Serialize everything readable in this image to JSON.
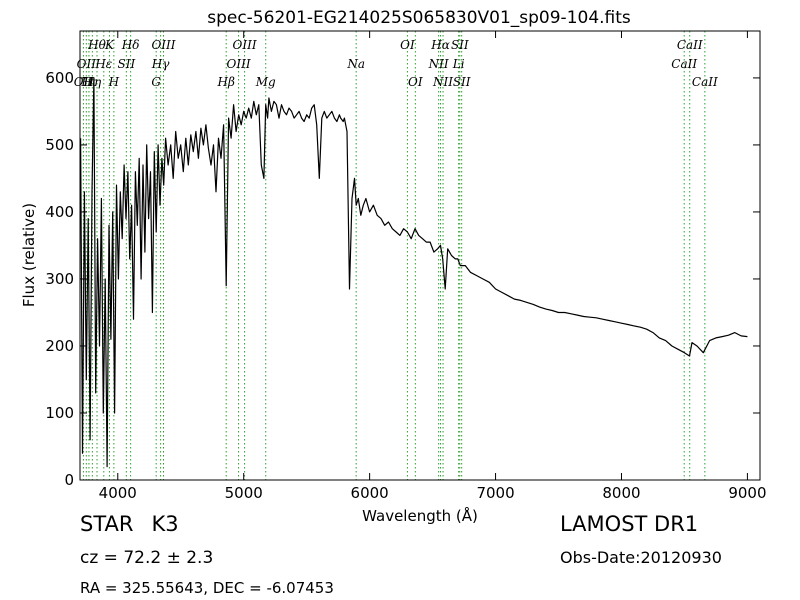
{
  "chart_data": {
    "type": "line",
    "title": "spec-56201-EG214025S065830V01_sp09-104.fits",
    "xlabel": "Wavelength (Å)",
    "ylabel": "Flux (relative)",
    "xlim": [
      3700,
      9100
    ],
    "ylim": [
      0,
      670
    ],
    "xticks": [
      4000,
      5000,
      6000,
      7000,
      8000,
      9000
    ],
    "yticks": [
      0,
      100,
      200,
      300,
      400,
      500,
      600
    ],
    "grid": false,
    "line_color": "#000000",
    "marker_color": "#2ca02c",
    "series": [
      {
        "x": [
          3705,
          3720,
          3735,
          3750,
          3765,
          3780,
          3795,
          3810,
          3825,
          3840,
          3855,
          3870,
          3885,
          3900,
          3915,
          3930,
          3945,
          3960,
          3975,
          3990,
          4005,
          4020,
          4035,
          4050,
          4065,
          4080,
          4095,
          4110,
          4125,
          4140,
          4155,
          4170,
          4185,
          4200,
          4215,
          4230,
          4245,
          4260,
          4275,
          4290,
          4305,
          4320,
          4335,
          4350,
          4365,
          4380,
          4400,
          4420,
          4440,
          4460,
          4480,
          4500,
          4520,
          4540,
          4560,
          4580,
          4600,
          4620,
          4640,
          4660,
          4680,
          4700,
          4720,
          4740,
          4760,
          4780,
          4800,
          4820,
          4840,
          4861,
          4880,
          4900,
          4920,
          4940,
          4960,
          4980,
          5000,
          5020,
          5040,
          5060,
          5080,
          5100,
          5120,
          5140,
          5160,
          5175,
          5190,
          5200,
          5220,
          5240,
          5260,
          5280,
          5300,
          5320,
          5340,
          5360,
          5380,
          5400,
          5420,
          5440,
          5460,
          5480,
          5500,
          5520,
          5540,
          5560,
          5580,
          5600,
          5620,
          5640,
          5660,
          5680,
          5700,
          5720,
          5740,
          5760,
          5770,
          5790,
          5800,
          5820,
          5840,
          5860,
          5880,
          5893,
          5910,
          5930,
          5950,
          5970,
          6000,
          6030,
          6060,
          6090,
          6120,
          6150,
          6180,
          6210,
          6240,
          6270,
          6300,
          6330,
          6360,
          6390,
          6420,
          6450,
          6480,
          6510,
          6540,
          6563,
          6580,
          6600,
          6620,
          6650,
          6680,
          6700,
          6720,
          6760,
          6800,
          6850,
          6900,
          6950,
          7000,
          7050,
          7100,
          7150,
          7200,
          7250,
          7300,
          7350,
          7400,
          7450,
          7500,
          7550,
          7600,
          7650,
          7700,
          7750,
          7800,
          7850,
          7900,
          7950,
          8000,
          8050,
          8100,
          8150,
          8200,
          8250,
          8300,
          8350,
          8400,
          8450,
          8500,
          8540,
          8560,
          8600,
          8650,
          8700,
          8750,
          8800,
          8850,
          8900,
          8950,
          9000
        ],
        "y": [
          510,
          40,
          430,
          150,
          390,
          60,
          430,
          600,
          130,
          360,
          200,
          420,
          100,
          300,
          20,
          380,
          210,
          400,
          100,
          440,
          300,
          430,
          360,
          470,
          390,
          460,
          330,
          410,
          240,
          460,
          380,
          480,
          300,
          470,
          340,
          500,
          390,
          460,
          250,
          490,
          370,
          500,
          410,
          480,
          440,
          510,
          470,
          500,
          450,
          520,
          480,
          500,
          460,
          510,
          470,
          515,
          490,
          520,
          480,
          525,
          500,
          530,
          495,
          470,
          500,
          430,
          510,
          480,
          530,
          290,
          540,
          510,
          560,
          520,
          545,
          530,
          550,
          540,
          555,
          540,
          565,
          545,
          560,
          470,
          450,
          560,
          540,
          570,
          550,
          565,
          560,
          540,
          560,
          550,
          545,
          555,
          550,
          540,
          545,
          550,
          540,
          535,
          545,
          540,
          555,
          560,
          530,
          450,
          540,
          550,
          540,
          545,
          550,
          540,
          535,
          545,
          540,
          535,
          540,
          520,
          285,
          420,
          450,
          410,
          420,
          395,
          410,
          420,
          400,
          410,
          395,
          390,
          380,
          385,
          375,
          370,
          365,
          375,
          370,
          360,
          375,
          365,
          360,
          355,
          355,
          340,
          345,
          350,
          330,
          285,
          345,
          335,
          330,
          330,
          320,
          320,
          310,
          305,
          300,
          295,
          285,
          280,
          275,
          270,
          268,
          265,
          262,
          258,
          255,
          253,
          250,
          250,
          248,
          246,
          244,
          243,
          242,
          240,
          238,
          236,
          234,
          232,
          230,
          228,
          225,
          220,
          212,
          208,
          200,
          195,
          190,
          185,
          205,
          200,
          190,
          208,
          212,
          214,
          216,
          220,
          215,
          214
        ]
      }
    ],
    "line_markers": [
      {
        "wl": 3727,
        "label": "OII",
        "row": 3
      },
      {
        "wl": 3750,
        "label": "OII",
        "row": 2
      },
      {
        "wl": 3771,
        "label": "Hι",
        "row": 3
      },
      {
        "wl": 3798,
        "label": "Hη",
        "row": 3
      },
      {
        "wl": 3835,
        "label": "Hθ",
        "row": 1
      },
      {
        "wl": 3889,
        "label": "Hε",
        "row": 2
      },
      {
        "wl": 3934,
        "label": "K",
        "row": 1
      },
      {
        "wl": 3969,
        "label": "H",
        "row": 3
      },
      {
        "wl": 4068,
        "label": "SII",
        "row": 2
      },
      {
        "wl": 4102,
        "label": "Hδ",
        "row": 1
      },
      {
        "wl": 4305,
        "label": "G",
        "row": 3
      },
      {
        "wl": 4340,
        "label": "Hγ",
        "row": 2
      },
      {
        "wl": 4363,
        "label": "OIII",
        "row": 1
      },
      {
        "wl": 4861,
        "label": "Hβ",
        "row": 3
      },
      {
        "wl": 4959,
        "label": "OIII",
        "row": 2
      },
      {
        "wl": 5007,
        "label": "OIII",
        "row": 1
      },
      {
        "wl": 5175,
        "label": "Mg",
        "row": 3
      },
      {
        "wl": 5893,
        "label": "Na",
        "row": 2
      },
      {
        "wl": 6300,
        "label": "OI",
        "row": 1
      },
      {
        "wl": 6363,
        "label": "OI",
        "row": 3
      },
      {
        "wl": 6548,
        "label": "NII",
        "row": 2
      },
      {
        "wl": 6563,
        "label": "Hα",
        "row": 1
      },
      {
        "wl": 6583,
        "label": "NII",
        "row": 3
      },
      {
        "wl": 6707,
        "label": "Li",
        "row": 2
      },
      {
        "wl": 6716,
        "label": "SII",
        "row": 1
      },
      {
        "wl": 6731,
        "label": "SII",
        "row": 3
      },
      {
        "wl": 8498,
        "label": "CaII",
        "row": 2
      },
      {
        "wl": 8542,
        "label": "CaII",
        "row": 1
      },
      {
        "wl": 8662,
        "label": "CaII",
        "row": 3
      }
    ]
  },
  "info": {
    "class_label": "STAR",
    "subclass": "K3",
    "survey": "LAMOST DR1",
    "redshift_text": "cz = 72.2  ± 2.3",
    "obs_date_text": "Obs-Date:20120930",
    "coords_text": "RA = 325.55643, DEC = -6.07453"
  }
}
